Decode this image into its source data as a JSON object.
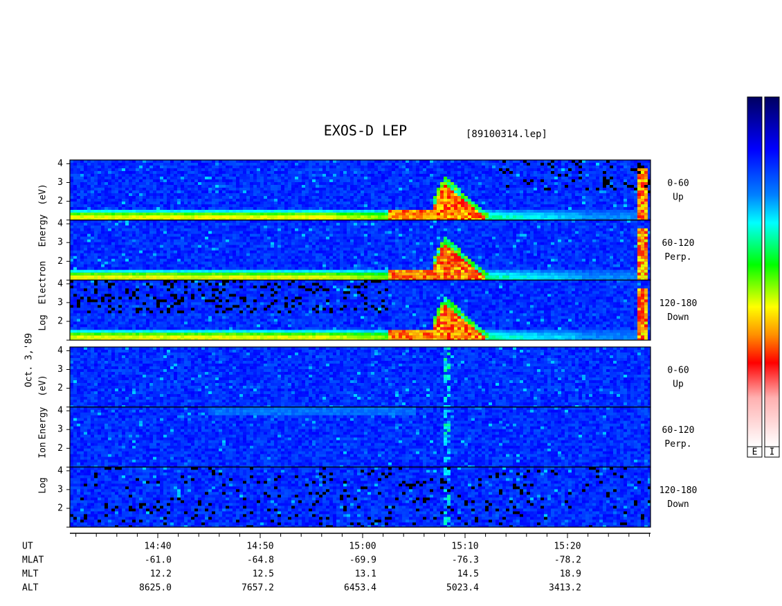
{
  "header": {
    "title": "EXOS-D LEP",
    "file": "[89100314.lep]"
  },
  "date": "Oct. 3,'89",
  "energy_axis": {
    "ylim": [
      1,
      4.2
    ],
    "yticks": [
      2,
      3,
      4
    ]
  },
  "electron": {
    "label": [
      "Log",
      "Electron",
      "Energy",
      "(eV)"
    ],
    "panels": [
      {
        "range": "0-60",
        "direction": "Up"
      },
      {
        "range": "60-120",
        "direction": "Perp."
      },
      {
        "range": "120-180",
        "direction": "Down"
      }
    ]
  },
  "ion": {
    "label": [
      "Log",
      "Ion",
      "Energy",
      "(eV)"
    ],
    "panels": [
      {
        "range": "0-60",
        "direction": "Up"
      },
      {
        "range": "60-120",
        "direction": "Perp."
      },
      {
        "range": "120-180",
        "direction": "Down"
      }
    ]
  },
  "ephemeris": {
    "rows": [
      {
        "name": "UT",
        "values": [
          "14:40",
          "14:50",
          "15:00",
          "15:10",
          "15:20"
        ]
      },
      {
        "name": "MLAT",
        "values": [
          "-61.0",
          "-64.8",
          "-69.9",
          "-76.3",
          "-78.2"
        ]
      },
      {
        "name": "MLT",
        "values": [
          "12.2",
          "12.5",
          "13.1",
          "14.5",
          "18.9"
        ]
      },
      {
        "name": "ALT",
        "values": [
          "8625.0",
          "7657.2",
          "6453.4",
          "5023.4",
          "3413.2"
        ]
      }
    ]
  },
  "colorbar": {
    "labels": [
      "E",
      "I"
    ]
  }
}
